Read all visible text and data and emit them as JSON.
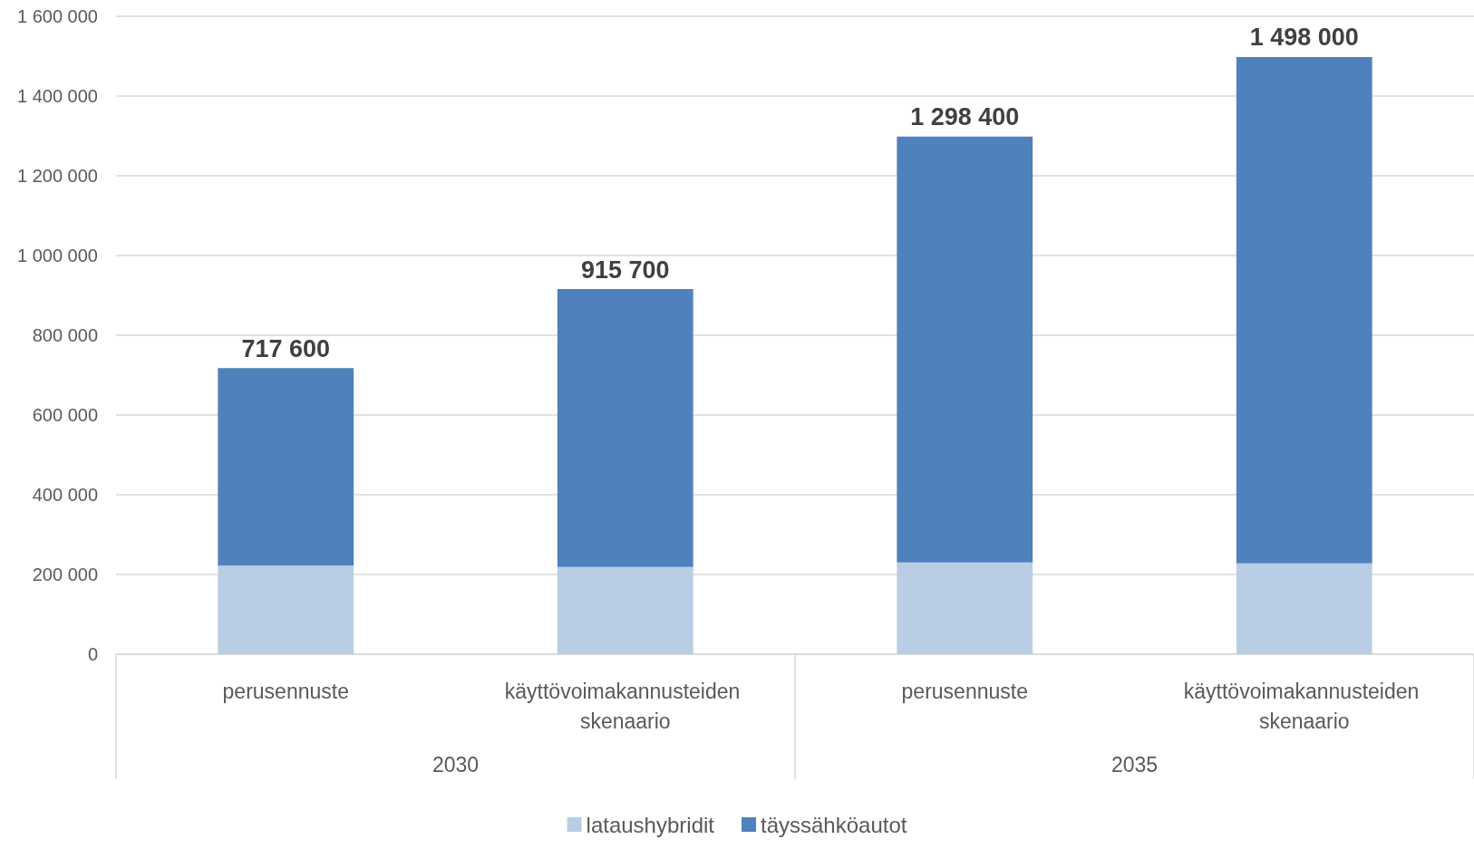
{
  "chart_data": {
    "type": "bar",
    "stacked": true,
    "categories": [
      "perusennuste",
      "käyttövoimakannusteiden skenaario",
      "perusennuste",
      "käyttövoimakannusteiden skenaario"
    ],
    "series": [
      {
        "name": "lataushybridit",
        "color": "#b9cde5",
        "values": [
          222000,
          219000,
          230000,
          228000
        ]
      },
      {
        "name": "täyssähköautot",
        "color": "#4f81bd",
        "values": [
          495600,
          696700,
          1068400,
          1270000
        ]
      }
    ],
    "totals": [
      "717 600",
      "915 700",
      "1 298 400",
      "1 498 000"
    ],
    "annotations": [
      "2030",
      "2035"
    ],
    "ylim": [
      0,
      1600000
    ],
    "yticks": [
      {
        "value": 0,
        "label": "0"
      },
      {
        "value": 200000,
        "label": "200 000"
      },
      {
        "value": 400000,
        "label": "400 000"
      },
      {
        "value": 600000,
        "label": "600 000"
      },
      {
        "value": 800000,
        "label": "800 000"
      },
      {
        "value": 1000000,
        "label": "1 000 000"
      },
      {
        "value": 1200000,
        "label": "1 200 000"
      },
      {
        "value": 1400000,
        "label": "1 400 000"
      },
      {
        "value": 1600000,
        "label": "1 600 000"
      }
    ],
    "grid": "y",
    "legend": "bottom"
  }
}
